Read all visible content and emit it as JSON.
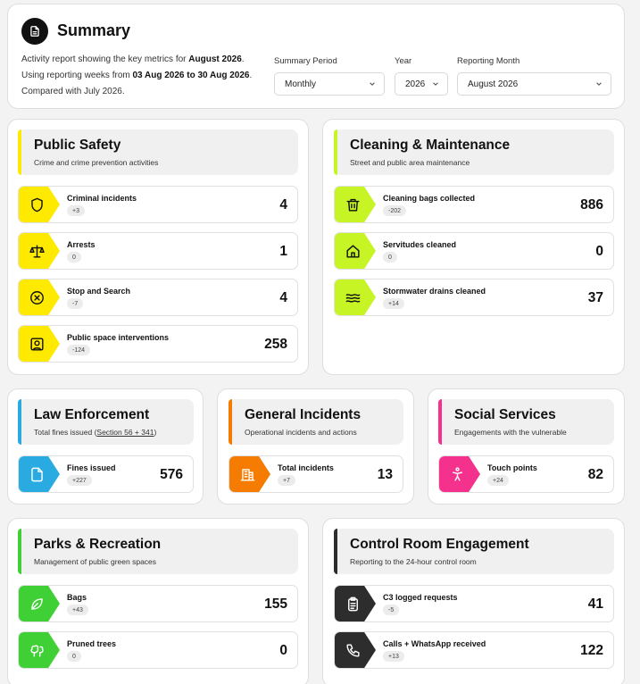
{
  "summary": {
    "title": "Summary",
    "icon": "document-icon",
    "line1_prefix": "Activity report showing the key metrics for ",
    "line1_bold": "August 2026",
    "line1_suffix": ".",
    "line2_prefix": "Using reporting weeks from ",
    "line2_bold": "03 Aug 2026 to 30 Aug 2026",
    "line2_suffix": ".",
    "line3": "Compared with July 2026.",
    "filters": {
      "period_label": "Summary Period",
      "period_value": "Monthly",
      "year_label": "Year",
      "year_value": "2026",
      "month_label": "Reporting Month",
      "month_value": "August 2026"
    }
  },
  "colors": {
    "public_safety": "#fdea00",
    "cleaning": "#c7f424",
    "law": "#29abe2",
    "general": "#f57c00",
    "social": "#f5318e",
    "parks": "#3fd035",
    "control": "#2d2d2d"
  },
  "sections": {
    "public_safety": {
      "title": "Public Safety",
      "subtitle": "Crime and crime prevention activities",
      "metrics": [
        {
          "label": "Criminal incidents",
          "delta": "+3",
          "value": "4",
          "icon": "shield-icon"
        },
        {
          "label": "Arrests",
          "delta": "0",
          "value": "1",
          "icon": "scales-icon"
        },
        {
          "label": "Stop and Search",
          "delta": "-7",
          "value": "4",
          "icon": "circle-x-icon"
        },
        {
          "label": "Public space interventions",
          "delta": "-124",
          "value": "258",
          "icon": "user-square-icon"
        }
      ]
    },
    "cleaning": {
      "title": "Cleaning & Maintenance",
      "subtitle": "Street and public area maintenance",
      "metrics": [
        {
          "label": "Cleaning bags collected",
          "delta": "-202",
          "value": "886",
          "icon": "trash-icon"
        },
        {
          "label": "Servitudes cleaned",
          "delta": "0",
          "value": "0",
          "icon": "home-icon"
        },
        {
          "label": "Stormwater drains cleaned",
          "delta": "+14",
          "value": "37",
          "icon": "waves-icon"
        }
      ]
    },
    "law": {
      "title": "Law Enforcement",
      "subtitle_prefix": "Total fines issued (",
      "subtitle_link": "Section 56 + 341",
      "subtitle_suffix": ")",
      "metrics": [
        {
          "label": "Fines issued",
          "delta": "+227",
          "value": "576",
          "icon": "file-icon"
        }
      ]
    },
    "general": {
      "title": "General Incidents",
      "subtitle": "Operational incidents and actions",
      "metrics": [
        {
          "label": "Total incidents",
          "delta": "+7",
          "value": "13",
          "icon": "building-icon"
        }
      ]
    },
    "social": {
      "title": "Social Services",
      "subtitle": "Engagements with the vulnerable",
      "metrics": [
        {
          "label": "Touch points",
          "delta": "+24",
          "value": "82",
          "icon": "person-icon"
        }
      ]
    },
    "parks": {
      "title": "Parks & Recreation",
      "subtitle": "Management of public green spaces",
      "metrics": [
        {
          "label": "Bags",
          "delta": "+43",
          "value": "155",
          "icon": "leaf-icon"
        },
        {
          "label": "Pruned trees",
          "delta": "0",
          "value": "0",
          "icon": "trees-icon"
        }
      ]
    },
    "control": {
      "title": "Control Room Engagement",
      "subtitle": "Reporting to the 24-hour control room",
      "metrics": [
        {
          "label": "C3 logged requests",
          "delta": "-5",
          "value": "41",
          "icon": "clipboard-icon"
        },
        {
          "label": "Calls + WhatsApp received",
          "delta": "+13",
          "value": "122",
          "icon": "phone-icon"
        }
      ]
    }
  }
}
